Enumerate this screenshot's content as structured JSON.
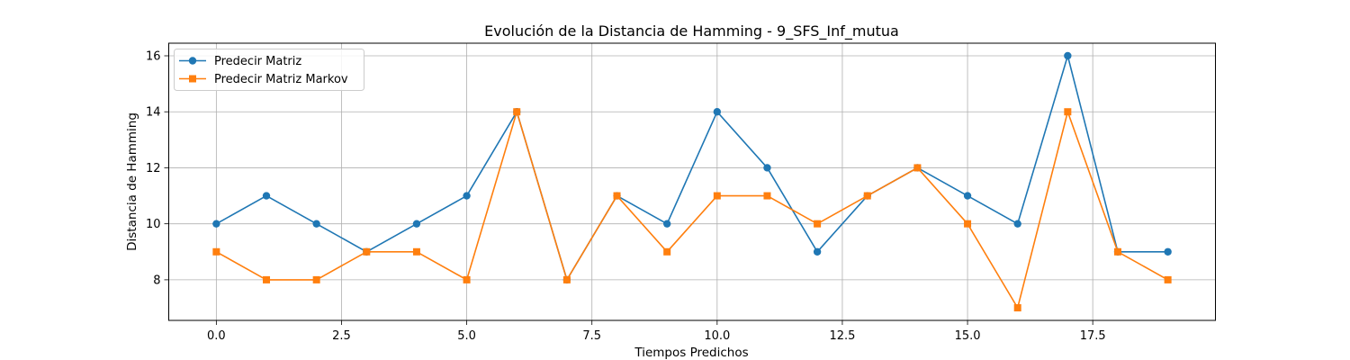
{
  "chart_data": {
    "type": "line",
    "title": "Evolución de la Distancia de Hamming - 9_SFS_Inf_mutua",
    "xlabel": "Tiempos Predichos",
    "ylabel": "Distancia de Hamming",
    "x": [
      0,
      1,
      2,
      3,
      4,
      5,
      6,
      7,
      8,
      9,
      10,
      11,
      12,
      13,
      14,
      15,
      16,
      17,
      18,
      19
    ],
    "xlim": [
      -0.95,
      19.95
    ],
    "ylim": [
      6.55,
      16.45
    ],
    "xticks": [
      0.0,
      2.5,
      5.0,
      7.5,
      10.0,
      12.5,
      15.0,
      17.5
    ],
    "xtick_labels": [
      "0.0",
      "2.5",
      "5.0",
      "7.5",
      "10.0",
      "12.5",
      "15.0",
      "17.5"
    ],
    "yticks": [
      8,
      10,
      12,
      14,
      16
    ],
    "ytick_labels": [
      "8",
      "10",
      "12",
      "14",
      "16"
    ],
    "grid": true,
    "legend_position": "top-left",
    "series": [
      {
        "name": "Predecir Matriz",
        "color": "#1f77b4",
        "marker": "circle",
        "values": [
          10,
          11,
          10,
          9,
          10,
          11,
          14,
          8,
          11,
          10,
          14,
          12,
          9,
          11,
          12,
          11,
          10,
          16,
          9,
          9
        ]
      },
      {
        "name": "Predecir Matriz Markov",
        "color": "#ff7f0e",
        "marker": "square",
        "values": [
          9,
          8,
          8,
          9,
          9,
          8,
          14,
          8,
          11,
          9,
          11,
          11,
          10,
          11,
          12,
          10,
          7,
          14,
          9,
          8
        ]
      }
    ]
  }
}
